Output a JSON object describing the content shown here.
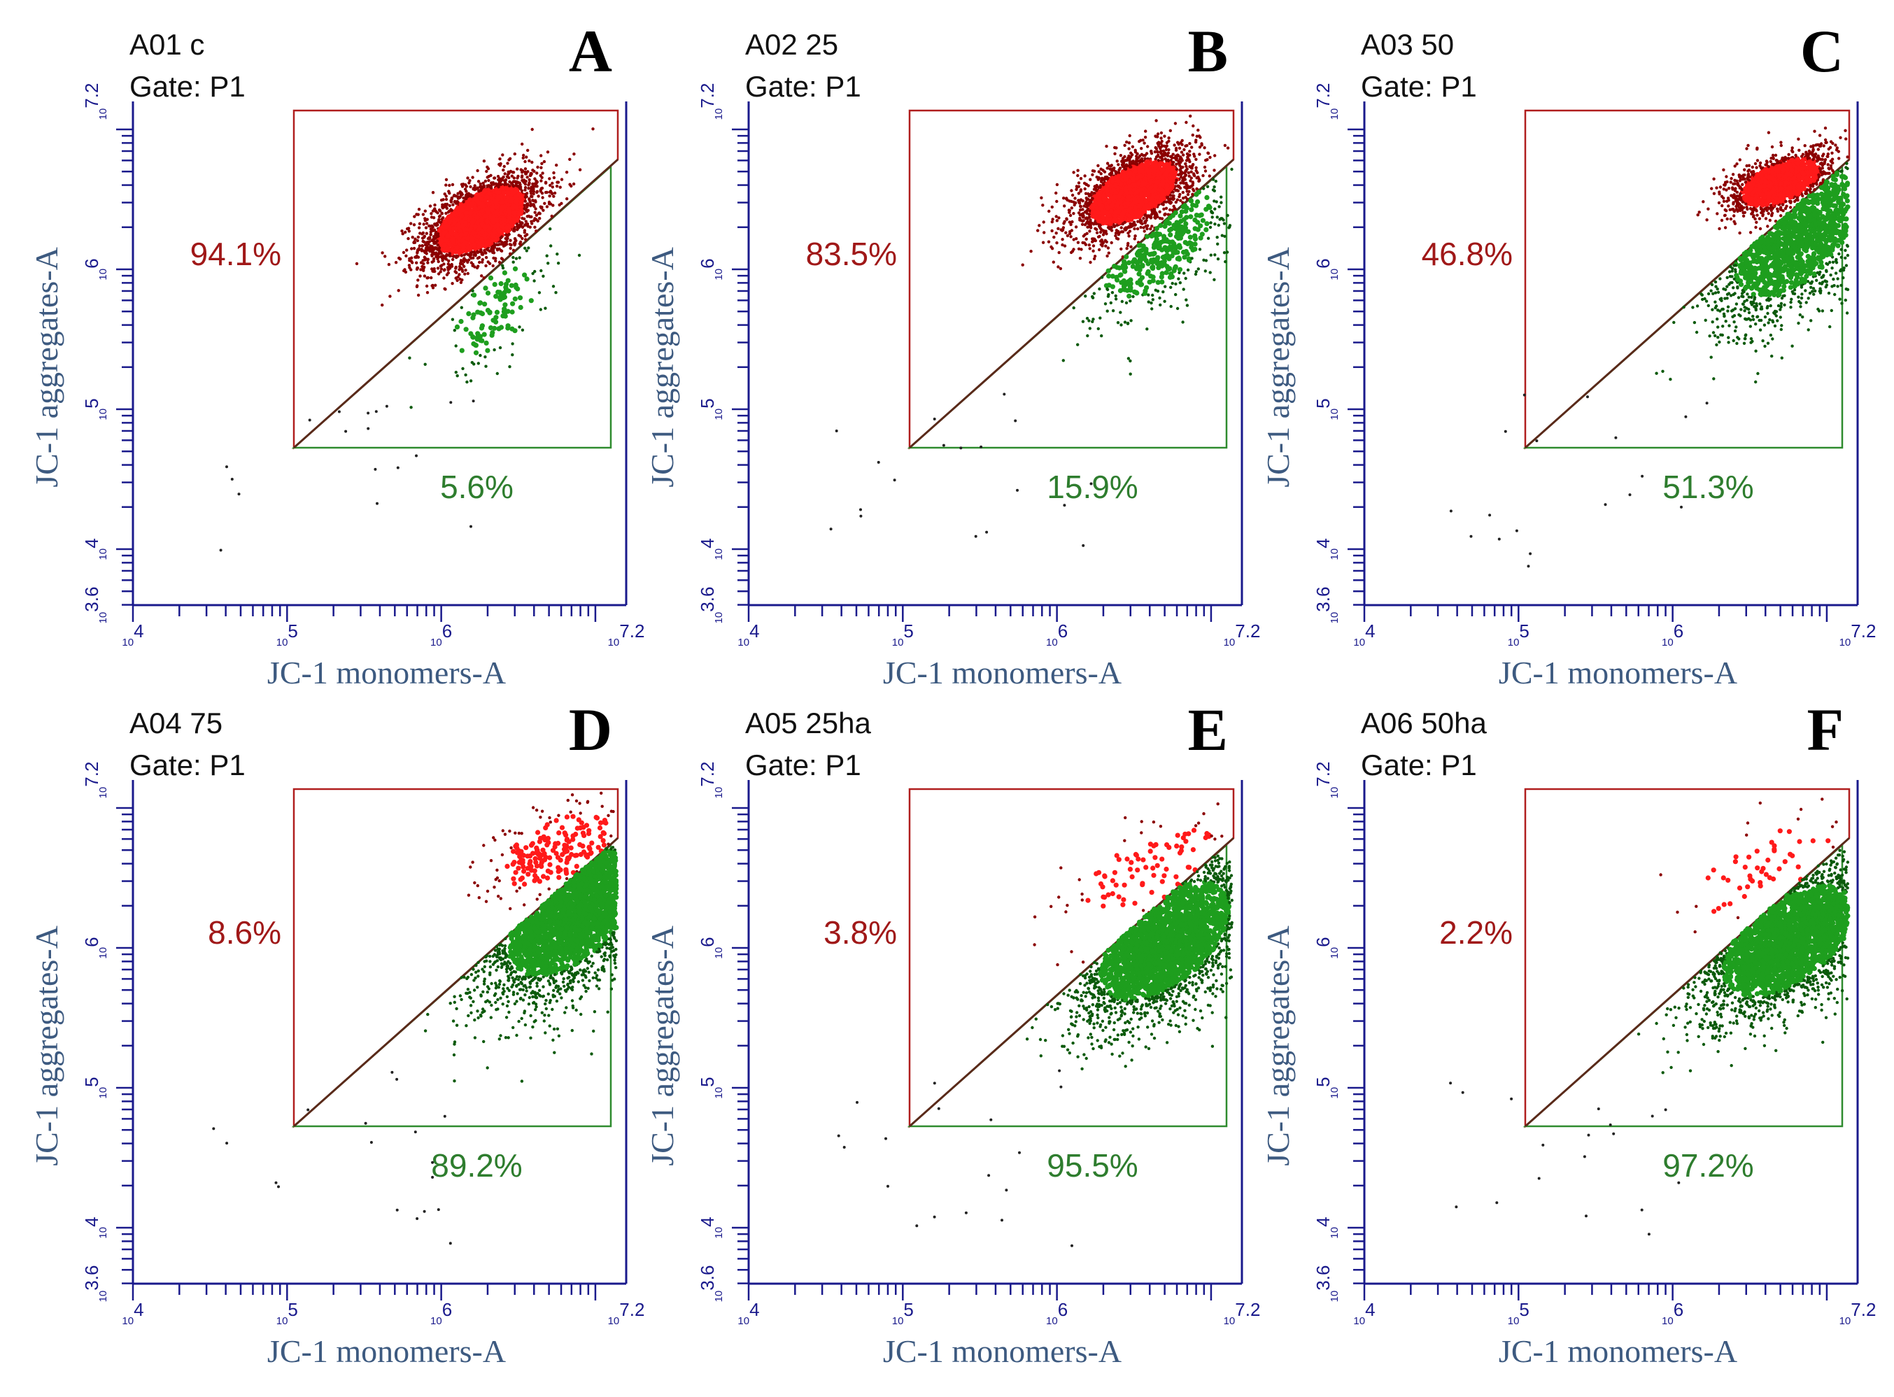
{
  "colors": {
    "axis": "#1a1a8c",
    "axis_label": "#3d5a80",
    "gate_red": "#b01e1e",
    "gate_green": "#2e8b2e",
    "red_events": "#ff1a1a",
    "dark_red_events": "#8b0000",
    "green_events": "#1e9e1e",
    "dark_green_events": "#0b5a0b",
    "red_pct": "#a01818",
    "green_pct": "#2e7d2e",
    "diag": "#5a2a1a"
  },
  "chart_data": [
    {
      "type": "scatter",
      "panel_letter": "A",
      "sample": "A01 c",
      "gate": "Gate: P1",
      "xlabel": "JC-1 monomers-A",
      "ylabel": "JC-1 aggregates-A",
      "xscale": "log",
      "yscale": "log",
      "xlim": [
        "10^4",
        "10^7.2"
      ],
      "ylim": [
        "10^3.6",
        "10^7.2"
      ],
      "x_ticks": [
        "10^4",
        "10^5",
        "10^6",
        "10^7.2"
      ],
      "y_ticks": [
        "10^3.6",
        "10^4",
        "10^5",
        "10^6",
        "10^7.2"
      ],
      "quadrants": {
        "upper_red": "94.1%",
        "lower_green": "5.6%"
      },
      "red_cluster": {
        "center_log": [
          6.26,
          6.35
        ],
        "spread_log": [
          0.2,
          0.17
        ]
      },
      "green_cluster": {
        "center_log": [
          6.35,
          5.7
        ],
        "spread_log": [
          0.18,
          0.22
        ]
      }
    },
    {
      "type": "scatter",
      "panel_letter": "B",
      "sample": "A02 25",
      "gate": "Gate: P1",
      "xlabel": "JC-1 monomers-A",
      "ylabel": "JC-1 aggregates-A",
      "xscale": "log",
      "yscale": "log",
      "xlim": [
        "10^4",
        "10^7.2"
      ],
      "ylim": [
        "10^3.6",
        "10^7.2"
      ],
      "x_ticks": [
        "10^4",
        "10^5",
        "10^6",
        "10^7.2"
      ],
      "y_ticks": [
        "10^3.6",
        "10^4",
        "10^5",
        "10^6",
        "10^7.2"
      ],
      "quadrants": {
        "upper_red": "83.5%",
        "lower_green": "15.9%"
      },
      "red_cluster": {
        "center_log": [
          6.5,
          6.55
        ],
        "spread_log": [
          0.2,
          0.16
        ]
      },
      "green_cluster": {
        "center_log": [
          6.65,
          6.2
        ],
        "spread_log": [
          0.25,
          0.28
        ]
      }
    },
    {
      "type": "scatter",
      "panel_letter": "C",
      "sample": "A03 50",
      "gate": "Gate: P1",
      "xlabel": "JC-1 monomers-A",
      "ylabel": "JC-1 aggregates-A",
      "xscale": "log",
      "yscale": "log",
      "xlim": [
        "10^4",
        "10^7.2"
      ],
      "ylim": [
        "10^3.6",
        "10^7.2"
      ],
      "x_ticks": [
        "10^4",
        "10^5",
        "10^6",
        "10^7.2"
      ],
      "y_ticks": [
        "10^3.6",
        "10^4",
        "10^5",
        "10^6",
        "10^7.2"
      ],
      "quadrants": {
        "upper_red": "46.8%",
        "lower_green": "51.3%"
      },
      "red_cluster": {
        "center_log": [
          6.7,
          6.62
        ],
        "spread_log": [
          0.18,
          0.12
        ]
      },
      "green_cluster": {
        "center_log": [
          6.8,
          6.25
        ],
        "spread_log": [
          0.28,
          0.32
        ]
      }
    },
    {
      "type": "scatter",
      "panel_letter": "D",
      "sample": "A04 75",
      "gate": "Gate: P1",
      "xlabel": "JC-1 monomers-A",
      "ylabel": "JC-1 aggregates-A",
      "xscale": "log",
      "yscale": "log",
      "xlim": [
        "10^4",
        "10^7.2"
      ],
      "ylim": [
        "10^3.6",
        "10^7.2"
      ],
      "x_ticks": [
        "10^4",
        "10^5",
        "10^6",
        "10^7.2"
      ],
      "y_ticks": [
        "10^3.6",
        "10^4",
        "10^5",
        "10^6",
        "10^7.2"
      ],
      "quadrants": {
        "upper_red": "8.6%",
        "lower_green": "89.2%"
      },
      "red_cluster": {
        "center_log": [
          6.75,
          6.7
        ],
        "spread_log": [
          0.25,
          0.18
        ]
      },
      "green_cluster": {
        "center_log": [
          6.85,
          6.25
        ],
        "spread_log": [
          0.3,
          0.32
        ]
      }
    },
    {
      "type": "scatter",
      "panel_letter": "E",
      "sample": "A05 25ha",
      "gate": "Gate: P1",
      "xlabel": "JC-1 monomers-A",
      "ylabel": "JC-1 aggregates-A",
      "xscale": "log",
      "yscale": "log",
      "xlim": [
        "10^4",
        "10^7.2"
      ],
      "ylim": [
        "10^3.6",
        "10^7.2"
      ],
      "x_ticks": [
        "10^4",
        "10^5",
        "10^6",
        "10^7.2"
      ],
      "y_ticks": [
        "10^3.6",
        "10^4",
        "10^5",
        "10^6",
        "10^7.2"
      ],
      "quadrants": {
        "upper_red": "3.8%",
        "lower_green": "95.5%"
      },
      "red_cluster": {
        "center_log": [
          6.6,
          6.55
        ],
        "spread_log": [
          0.3,
          0.22
        ]
      },
      "green_cluster": {
        "center_log": [
          6.7,
          6.05
        ],
        "spread_log": [
          0.3,
          0.3
        ]
      }
    },
    {
      "type": "scatter",
      "panel_letter": "F",
      "sample": "A06 50ha",
      "gate": "Gate: P1",
      "xlabel": "JC-1 monomers-A",
      "ylabel": "JC-1 aggregates-A",
      "xscale": "log",
      "yscale": "log",
      "xlim": [
        "10^4",
        "10^7.2"
      ],
      "ylim": [
        "10^3.6",
        "10^7.2"
      ],
      "x_ticks": [
        "10^4",
        "10^5",
        "10^6",
        "10^7.2"
      ],
      "y_ticks": [
        "10^3.6",
        "10^4",
        "10^5",
        "10^6",
        "10^7.2"
      ],
      "quadrants": {
        "upper_red": "2.2%",
        "lower_green": "97.2%"
      },
      "red_cluster": {
        "center_log": [
          6.6,
          6.55
        ],
        "spread_log": [
          0.3,
          0.22
        ]
      },
      "green_cluster": {
        "center_log": [
          6.75,
          6.05
        ],
        "spread_log": [
          0.3,
          0.28
        ]
      }
    }
  ]
}
